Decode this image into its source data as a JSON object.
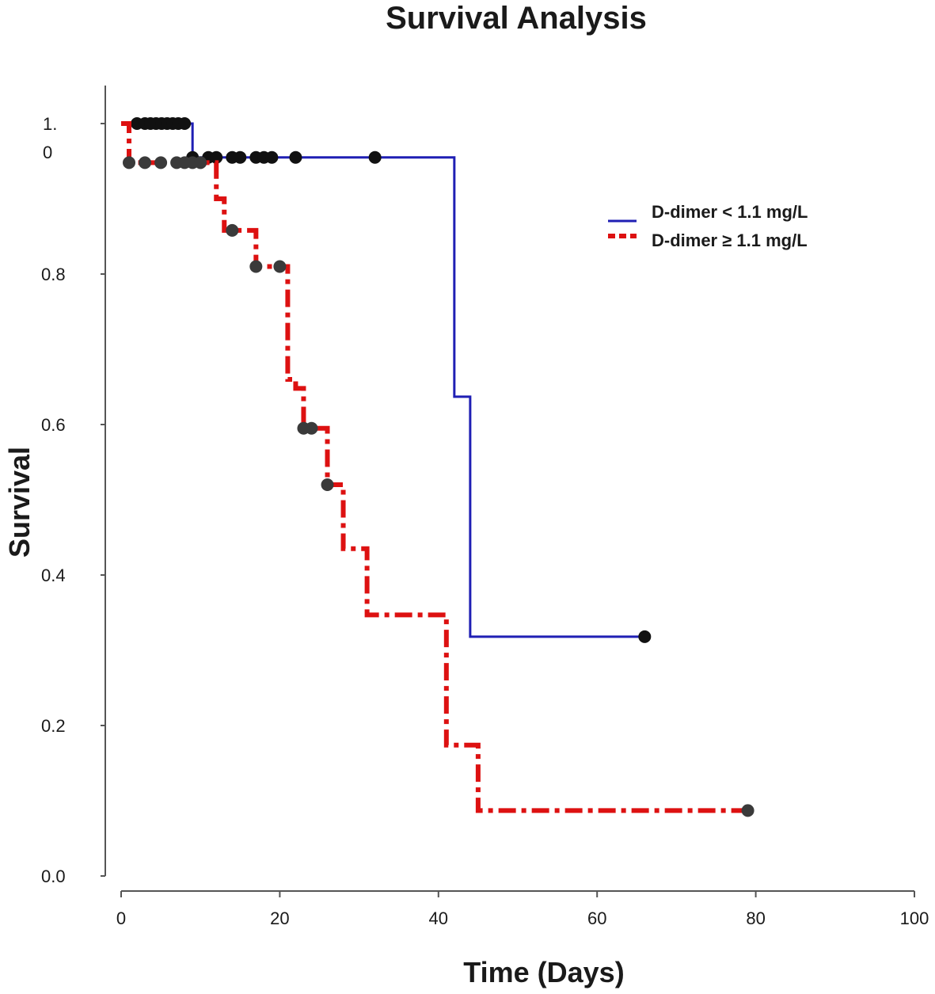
{
  "chart_data": {
    "type": "line",
    "title": "Survival Analysis",
    "xlabel": "Time (Days)",
    "ylabel": "Survival",
    "xlim": [
      0,
      100
    ],
    "ylim": [
      0,
      1.0
    ],
    "x_ticks": [
      {
        "value": 0,
        "label": "0"
      },
      {
        "value": 20,
        "label": "20"
      },
      {
        "value": 40,
        "label": "40"
      },
      {
        "value": 60,
        "label": "60"
      },
      {
        "value": 80,
        "label": "80"
      },
      {
        "value": 100,
        "label": "100"
      }
    ],
    "y_ticks": [
      {
        "value": 0.0,
        "label": "0.0"
      },
      {
        "value": 0.2,
        "label": "0.2"
      },
      {
        "value": 0.4,
        "label": "0.4"
      },
      {
        "value": 0.6,
        "label": "0.6"
      },
      {
        "value": 0.8,
        "label": "0.8"
      },
      {
        "value": 1.0,
        "label": "1.\n0"
      }
    ],
    "grid": false,
    "legend_position": "top-right",
    "series": [
      {
        "name": "D-dimer < 1.1 mg/L",
        "color": "#1f1fb4",
        "line_style": "solid",
        "steps": [
          {
            "x": 0,
            "y": 1.0
          },
          {
            "x": 9,
            "y": 0.955
          },
          {
            "x": 42,
            "y": 0.637
          },
          {
            "x": 44,
            "y": 0.318
          },
          {
            "x": 66,
            "y": 0.318
          }
        ],
        "censored": [
          {
            "x": 2,
            "y": 1.0
          },
          {
            "x": 3,
            "y": 1.0
          },
          {
            "x": 3.7,
            "y": 1.0
          },
          {
            "x": 4.4,
            "y": 1.0
          },
          {
            "x": 5.1,
            "y": 1.0
          },
          {
            "x": 5.8,
            "y": 1.0
          },
          {
            "x": 6.5,
            "y": 1.0
          },
          {
            "x": 7.2,
            "y": 1.0
          },
          {
            "x": 8,
            "y": 1.0
          },
          {
            "x": 9,
            "y": 0.955
          },
          {
            "x": 11,
            "y": 0.955
          },
          {
            "x": 12,
            "y": 0.955
          },
          {
            "x": 14,
            "y": 0.955
          },
          {
            "x": 15,
            "y": 0.955
          },
          {
            "x": 17,
            "y": 0.955
          },
          {
            "x": 18,
            "y": 0.955
          },
          {
            "x": 19,
            "y": 0.955
          },
          {
            "x": 22,
            "y": 0.955
          },
          {
            "x": 32,
            "y": 0.955
          },
          {
            "x": 66,
            "y": 0.318
          }
        ]
      },
      {
        "name": "D-dimer ≥ 1.1 mg/L",
        "color": "#dd1111",
        "line_style": "dash-dot",
        "steps": [
          {
            "x": 0,
            "y": 1.0
          },
          {
            "x": 1,
            "y": 0.948
          },
          {
            "x": 12,
            "y": 0.9
          },
          {
            "x": 13,
            "y": 0.858
          },
          {
            "x": 17,
            "y": 0.81
          },
          {
            "x": 21,
            "y": 0.66
          },
          {
            "x": 22,
            "y": 0.648
          },
          {
            "x": 23,
            "y": 0.595
          },
          {
            "x": 26,
            "y": 0.52
          },
          {
            "x": 28,
            "y": 0.435
          },
          {
            "x": 31,
            "y": 0.347
          },
          {
            "x": 41,
            "y": 0.174
          },
          {
            "x": 45,
            "y": 0.087
          },
          {
            "x": 79,
            "y": 0.087
          }
        ],
        "censored": [
          {
            "x": 1,
            "y": 0.948
          },
          {
            "x": 3,
            "y": 0.948
          },
          {
            "x": 5,
            "y": 0.948
          },
          {
            "x": 7,
            "y": 0.948
          },
          {
            "x": 8,
            "y": 0.948
          },
          {
            "x": 9,
            "y": 0.948
          },
          {
            "x": 10,
            "y": 0.948
          },
          {
            "x": 14,
            "y": 0.858
          },
          {
            "x": 17,
            "y": 0.81
          },
          {
            "x": 20,
            "y": 0.81
          },
          {
            "x": 23,
            "y": 0.595
          },
          {
            "x": 24,
            "y": 0.595
          },
          {
            "x": 26,
            "y": 0.52
          },
          {
            "x": 79,
            "y": 0.087
          }
        ]
      }
    ]
  }
}
